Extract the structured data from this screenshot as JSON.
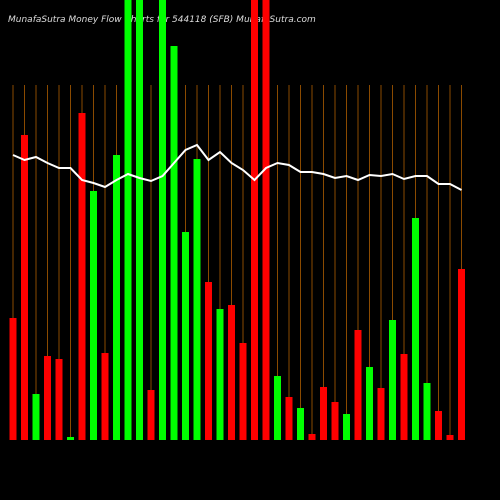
{
  "chart_data": {
    "type": "bar",
    "title": "MunafaSutra  Money Flow  Charts for 544118  (SFB) MunafaSutra.com",
    "categories": [
      null,
      null,
      null,
      null,
      null,
      null,
      null,
      null,
      null,
      null,
      null,
      null,
      null,
      null,
      null,
      null,
      null,
      null,
      null,
      null,
      null,
      null,
      null,
      null,
      null,
      null,
      null,
      null,
      null,
      null,
      null,
      null,
      null,
      null,
      null,
      null,
      null,
      null,
      null,
      null
    ],
    "values": [
      122,
      305,
      46,
      84,
      81,
      3,
      327,
      249,
      87,
      285,
      440,
      440,
      50,
      440,
      394,
      208,
      281,
      158,
      131,
      135,
      97,
      440,
      440,
      64,
      43,
      32,
      6,
      53,
      38,
      26,
      110,
      73,
      52,
      120,
      86,
      222,
      57,
      29,
      5,
      171
    ],
    "colors": [
      "#ff0000",
      "#ff0000",
      "#00ff00",
      "#ff0000",
      "#ff0000",
      "#00ff00",
      "#ff0000",
      "#00ff00",
      "#ff0000",
      "#00ff00",
      "#00ff00",
      "#00ff00",
      "#ff0000",
      "#00ff00",
      "#00ff00",
      "#00ff00",
      "#00ff00",
      "#ff0000",
      "#00ff00",
      "#ff0000",
      "#ff0000",
      "#ff0000",
      "#ff0000",
      "#00ff00",
      "#ff0000",
      "#00ff00",
      "#ff0000",
      "#ff0000",
      "#ff0000",
      "#00ff00",
      "#ff0000",
      "#00ff00",
      "#ff0000",
      "#00ff00",
      "#ff0000",
      "#00ff00",
      "#00ff00",
      "#ff0000",
      "#ff0000",
      "#ff0000"
    ],
    "line_values": [
      285,
      280,
      283,
      277,
      272,
      272,
      260,
      257,
      253,
      260,
      266,
      262,
      259,
      264,
      277,
      290,
      295,
      280,
      288,
      277,
      270,
      260,
      272,
      277,
      275,
      268,
      268,
      266,
      262,
      264,
      260,
      265,
      264,
      266,
      261,
      264,
      264,
      256,
      256,
      250
    ],
    "line_color": "#ffffff",
    "ylim": [
      0,
      440
    ]
  }
}
